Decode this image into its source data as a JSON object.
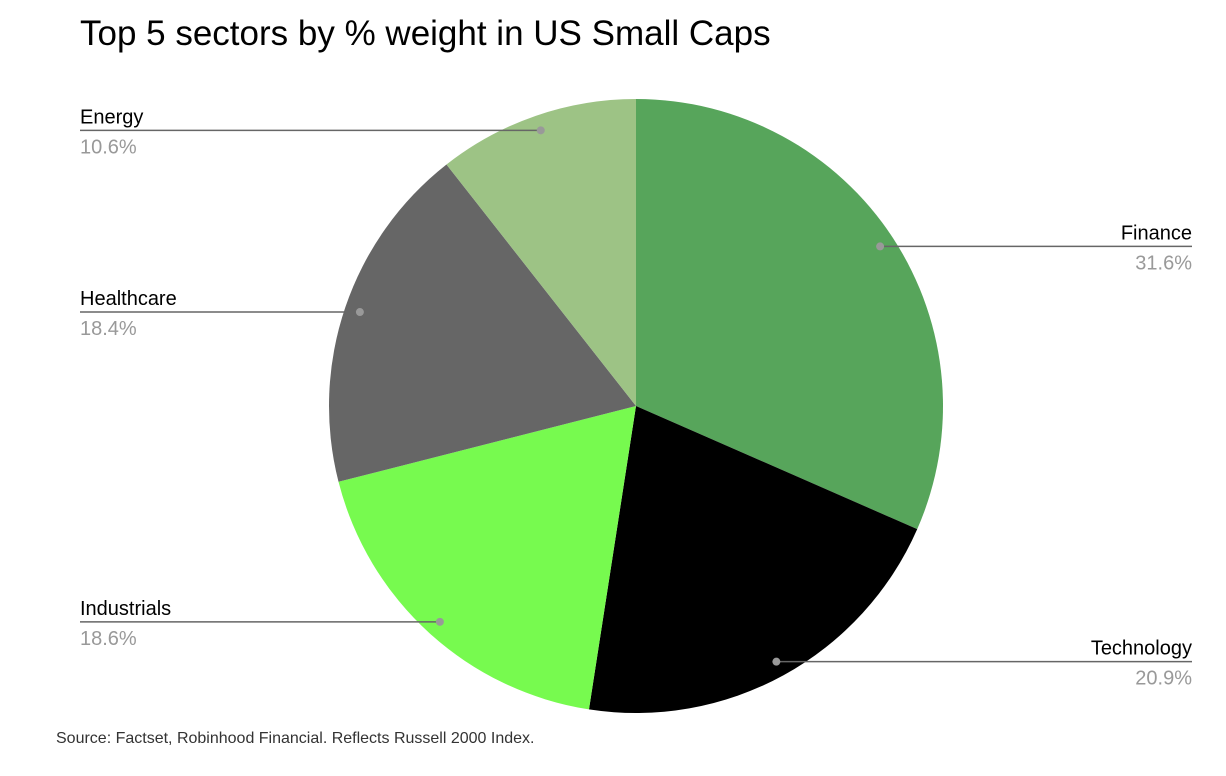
{
  "chart_data": {
    "type": "pie",
    "title": "Top 5 sectors by % weight in US Small Caps",
    "source": "Source: Factset, Robinhood Financial. Reflects Russell 2000 Index.",
    "slices": [
      {
        "label": "Finance",
        "value": 31.6,
        "value_label": "31.6%",
        "color": "#57a55b"
      },
      {
        "label": "Technology",
        "value": 20.9,
        "value_label": "20.9%",
        "color": "#000000"
      },
      {
        "label": "Industrials",
        "value": 18.6,
        "value_label": "18.6%",
        "color": "#77fa4f"
      },
      {
        "label": "Healthcare",
        "value": 18.4,
        "value_label": "18.4%",
        "color": "#666666"
      },
      {
        "label": "Energy",
        "value": 10.6,
        "value_label": "10.6%",
        "color": "#9dc385"
      }
    ],
    "start": "top",
    "direction": "clockwise",
    "legend": "labeled"
  }
}
